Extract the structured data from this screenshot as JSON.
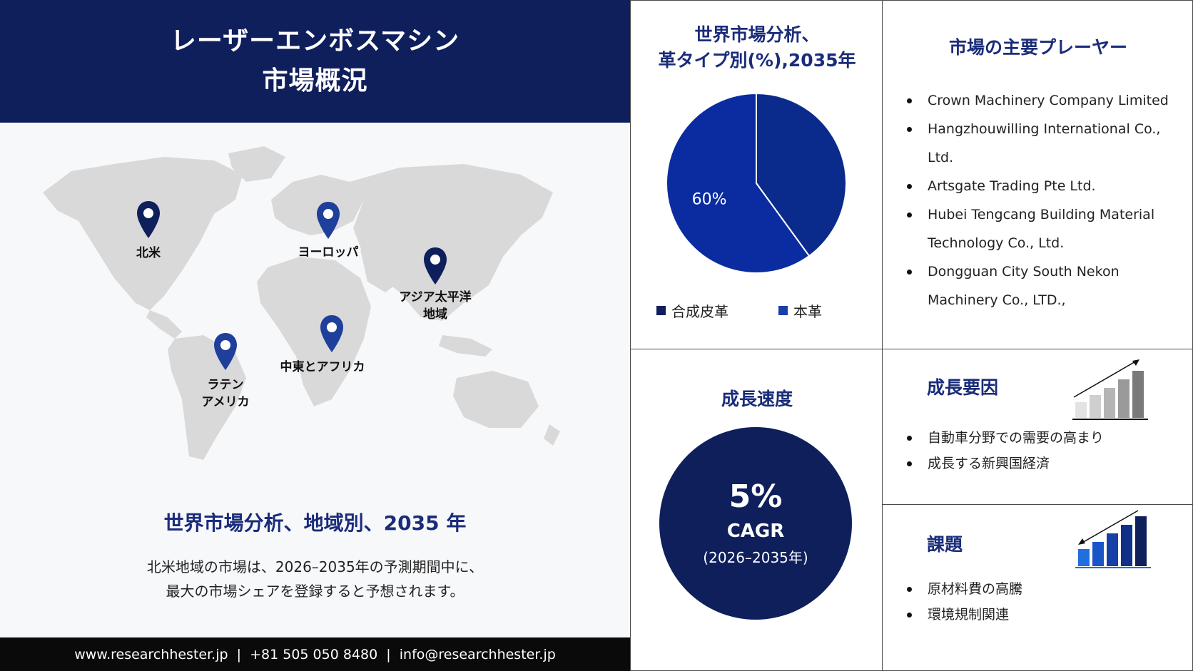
{
  "header": {
    "title_line1": "レーザーエンボスマシン",
    "title_line2": "市場概況"
  },
  "map": {
    "regions": [
      {
        "label_lines": [
          "北米"
        ],
        "color": "#0f1f5c"
      },
      {
        "label_lines": [
          "ヨーロッパ"
        ],
        "color": "#1e3f9a"
      },
      {
        "label_lines": [
          "アジア太平洋",
          "地域"
        ],
        "color": "#0f1f5c"
      },
      {
        "label_lines": [
          "中東とアフリカ"
        ],
        "color": "#1e3f9a"
      },
      {
        "label_lines": [
          "ラテン",
          "アメリカ"
        ],
        "color": "#1e3f9a"
      }
    ]
  },
  "region_analysis": {
    "title": "世界市場分析、地域別、2035 年",
    "text_line1": "北米地域の市場は、2026–2035年の予測期間中に、",
    "text_line2": "最大の市場シェアを登録すると予想されます。"
  },
  "footer": {
    "text": "www.researchhester.jp  |  +81 505 050 8480  |  info@researchhester.jp"
  },
  "chart_data": {
    "type": "pie",
    "title_line1": "世界市場分析、",
    "title_line2": "革タイプ別(%),2035年",
    "slices": [
      {
        "name": "合成皮革",
        "value": 60,
        "label": "60%",
        "color": "#0a2a9a"
      },
      {
        "name": "本革",
        "value": 40,
        "label": "",
        "color": "#1e3a8f"
      }
    ],
    "legend_position": "bottom"
  },
  "players": {
    "title": "市場の主要プレーヤー",
    "items": [
      [
        "Crown Machinery Company Limited"
      ],
      [
        "Hangzhouwilling International Co.,",
        "Ltd."
      ],
      [
        "Artsgate Trading Pte Ltd."
      ],
      [
        "Hubei Tengcang Building Material",
        "Technology Co., Ltd."
      ],
      [
        "Dongguan City South Nekon",
        "Machinery Co., LTD.,"
      ]
    ]
  },
  "growth": {
    "title": "成長速度",
    "value": "5%",
    "label": "CAGR",
    "period": "(2026–2035年)"
  },
  "drivers": {
    "title": "成長要因",
    "items": [
      "自動車分野での需要の高まり",
      "成長する新興国経済"
    ]
  },
  "challenges": {
    "title": "課題",
    "items": [
      "原材料費の高騰",
      "環境規制関連"
    ]
  },
  "colors": {
    "navy": "#0f1f5c",
    "accent_blue": "#1a2c7a",
    "map_gray": "#d9d9d9"
  }
}
